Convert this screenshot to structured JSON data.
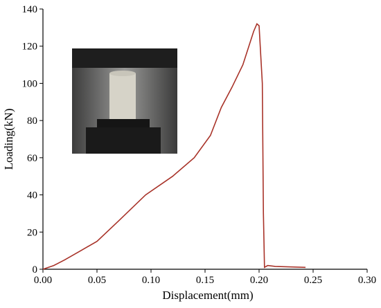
{
  "chart_data": {
    "type": "line",
    "x_label": "Displacement(mm)",
    "y_label": "Loading(kN)",
    "x": [
      0,
      0.01,
      0.02,
      0.035,
      0.05,
      0.07,
      0.095,
      0.12,
      0.14,
      0.155,
      0.165,
      0.175,
      0.185,
      0.195,
      0.198,
      0.2,
      0.203,
      0.204,
      0.205,
      0.208,
      0.215,
      0.243
    ],
    "series": [
      {
        "color": "#a83228",
        "values": [
          0,
          2,
          5,
          10,
          15,
          26,
          40,
          50,
          60,
          72,
          87,
          98,
          110,
          128,
          132,
          131,
          100,
          30,
          1,
          2,
          1.5,
          1
        ]
      }
    ],
    "xlim": [
      0,
      0.3
    ],
    "xticks": [
      {
        "value": 0,
        "label": "0.00"
      },
      0.05,
      {
        "value": 0.1,
        "label": "0.10"
      },
      0.15,
      {
        "value": 0.2,
        "label": "0.20"
      },
      0.25,
      {
        "value": 0.3,
        "label": "0.30"
      }
    ],
    "ylim": [
      0,
      140
    ],
    "yticks": [
      0,
      20,
      40,
      60,
      80,
      100,
      120,
      140
    ]
  }
}
